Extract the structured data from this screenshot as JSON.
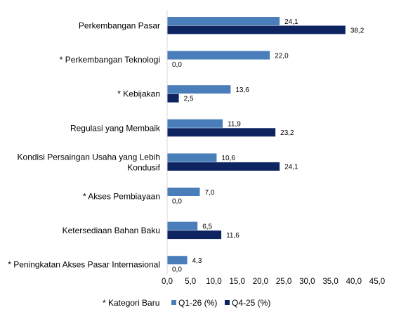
{
  "chart_data": {
    "type": "bar",
    "orientation": "horizontal",
    "categories": [
      [
        "Perkembangan Pasar"
      ],
      [
        "* Perkembangan Teknologi"
      ],
      [
        "* Kebijakan"
      ],
      [
        "Regulasi yang Membaik"
      ],
      [
        "Kondisi Persaingan Usaha yang Lebih",
        "Kondusif"
      ],
      [
        "* Akses Pembiayaan"
      ],
      [
        "Ketersediaan Bahan Baku"
      ],
      [
        "* Peningkatan Akses Pasar Internasional"
      ]
    ],
    "series": [
      {
        "name": "Q1-26 (%)",
        "color": "#4a7ebb",
        "values": [
          24.1,
          22.0,
          13.6,
          11.9,
          10.6,
          7.0,
          6.5,
          4.3
        ],
        "labels": [
          "24,1",
          "22,0",
          "13,6",
          "11,9",
          "10,6",
          "7,0",
          "6,5",
          "4,3"
        ]
      },
      {
        "name": "Q4-25 (%)",
        "color": "#0d2461",
        "values": [
          38.2,
          0.0,
          2.5,
          23.2,
          24.1,
          0.0,
          11.6,
          0.0
        ],
        "labels": [
          "38,2",
          "0,0",
          "2,5",
          "23,2",
          "24,1",
          "0,0",
          "11,6",
          "0,0"
        ]
      }
    ],
    "xlim": [
      0,
      45
    ],
    "x_ticks": [
      0,
      5,
      10,
      15,
      20,
      25,
      30,
      35,
      40,
      45
    ],
    "x_tick_labels": [
      "0,0",
      "5,0",
      "10,0",
      "15,0",
      "20,0",
      "25,0",
      "30,0",
      "35,0",
      "40,0",
      "45,0"
    ],
    "grid": false,
    "legend": {
      "position": "bottom",
      "note": "* Kategori Baru"
    },
    "title": "",
    "xlabel": "",
    "ylabel": ""
  }
}
